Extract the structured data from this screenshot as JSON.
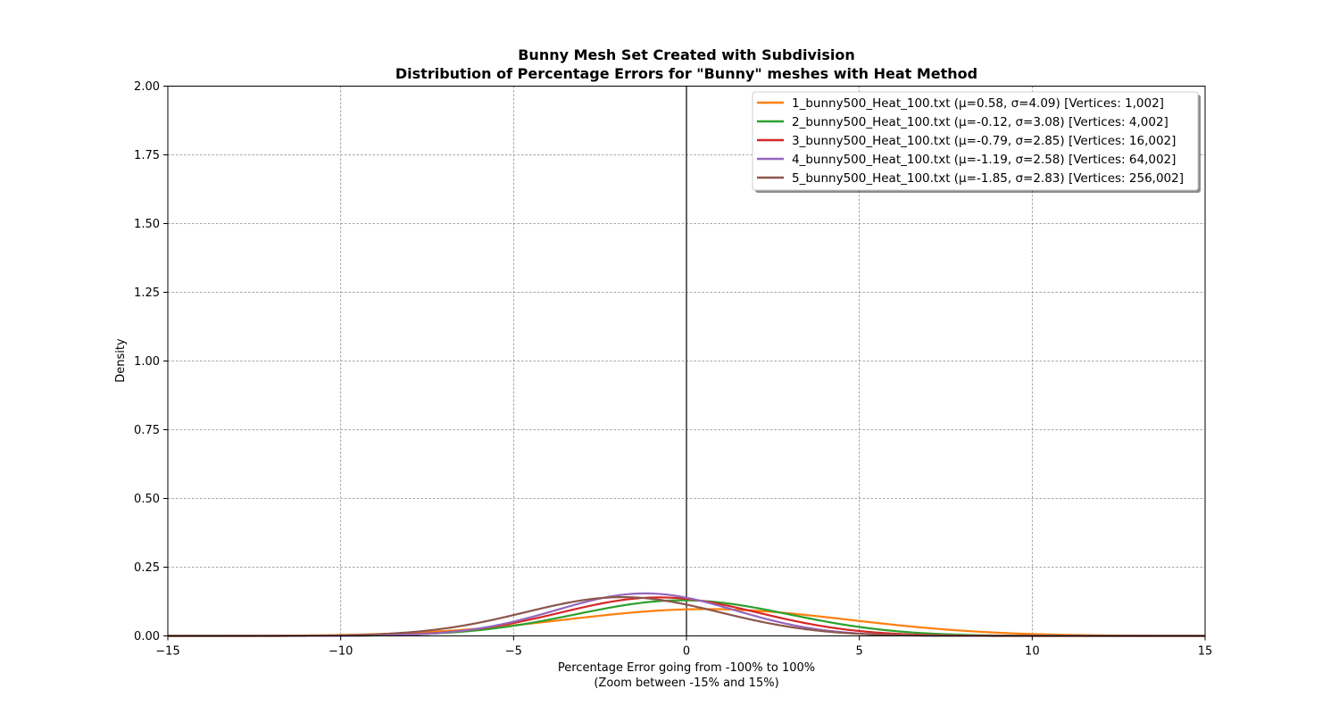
{
  "chart_data": {
    "type": "line",
    "title": "Bunny Mesh Set Created with Subdivision",
    "subtitle": "Distribution of Percentage Errors for \"Bunny\" meshes with Heat Method",
    "xlabel": "Percentage Error going from -100% to 100%",
    "xlabel_sub": "(Zoom between -15% and 15%)",
    "ylabel": "Density",
    "xlim": [
      -15,
      15
    ],
    "ylim": [
      0,
      2
    ],
    "x_ticks": [
      -15,
      -10,
      -5,
      0,
      5,
      10,
      15
    ],
    "x_tick_labels": [
      "−15",
      "−10",
      "−5",
      "0",
      "5",
      "10",
      "15"
    ],
    "y_ticks": [
      0,
      0.25,
      0.5,
      0.75,
      1.0,
      1.25,
      1.5,
      1.75,
      2.0
    ],
    "y_tick_labels": [
      "0.00",
      "0.25",
      "0.50",
      "0.75",
      "1.00",
      "1.25",
      "1.50",
      "1.75",
      "2.00"
    ],
    "grid": true,
    "vertical_reference_line_x": 0,
    "legend_position": "top-right",
    "series": [
      {
        "name": "1_bunny500_Heat_100.txt (μ=0.58, σ=4.09) [Vertices: 1,002]",
        "mu": 0.58,
        "sigma": 4.09,
        "color": "#ff7f0e"
      },
      {
        "name": "2_bunny500_Heat_100.txt (μ=-0.12, σ=3.08) [Vertices: 4,002]",
        "mu": -0.12,
        "sigma": 3.08,
        "color": "#2ca02c"
      },
      {
        "name": "3_bunny500_Heat_100.txt (μ=-0.79, σ=2.85) [Vertices: 16,002]",
        "mu": -0.79,
        "sigma": 2.85,
        "color": "#d62728"
      },
      {
        "name": "4_bunny500_Heat_100.txt (μ=-1.19, σ=2.58) [Vertices: 64,002]",
        "mu": -1.19,
        "sigma": 2.58,
        "color": "#9467bd"
      },
      {
        "name": "5_bunny500_Heat_100.txt (μ=-1.85, σ=2.83) [Vertices: 256,002]",
        "mu": -1.85,
        "sigma": 2.83,
        "color": "#8c564b"
      }
    ]
  }
}
